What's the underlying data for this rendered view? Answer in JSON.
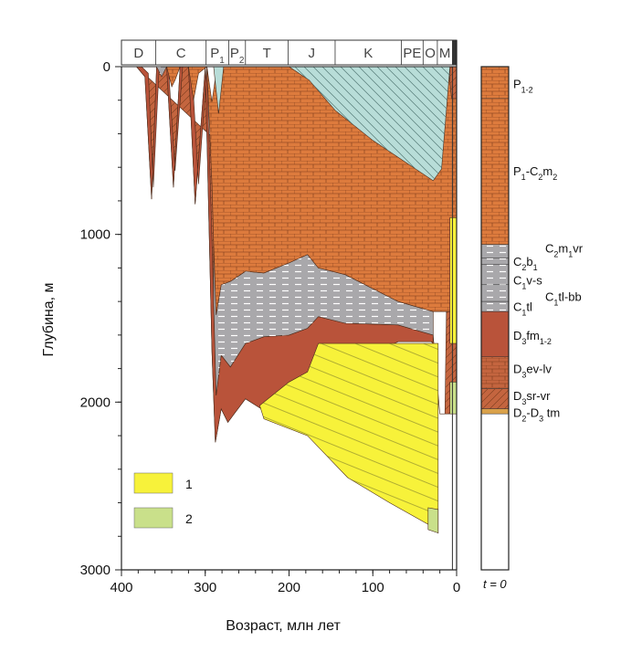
{
  "chart_data": {
    "type": "area",
    "xlabel": "Возраст, млн лет",
    "ylabel": "Глубина, м",
    "xlim": [
      400,
      0
    ],
    "ylim": [
      0,
      3000
    ],
    "x_ticks": [
      400,
      300,
      200,
      100,
      0
    ],
    "y_ticks": [
      0,
      1000,
      2000,
      3000
    ],
    "periods": [
      {
        "label": "D",
        "start": 400,
        "end": 359
      },
      {
        "label": "C",
        "start": 359,
        "end": 299
      },
      {
        "label": "P",
        "sub": "1",
        "start": 299,
        "end": 272
      },
      {
        "label": "P",
        "sub": "2",
        "start": 272,
        "end": 252
      },
      {
        "label": "T",
        "start": 252,
        "end": 201
      },
      {
        "label": "J",
        "start": 201,
        "end": 145
      },
      {
        "label": "K",
        "start": 145,
        "end": 66
      },
      {
        "label": "PE",
        "start": 66,
        "end": 40
      },
      {
        "label": "O",
        "start": 40,
        "end": 23
      },
      {
        "label": "M",
        "start": 23,
        "end": 5
      },
      {
        "label": "",
        "start": 5,
        "end": 0
      }
    ],
    "column_title": "t = 0",
    "column_units": [
      {
        "label": "P",
        "sub": "1-2",
        "top": 0,
        "bottom": 190,
        "fill": "#dd7b3d",
        "pattern": "brick",
        "tx": "P",
        "tsub": "1-2",
        "tail": ""
      },
      {
        "label": "P1-C2m2",
        "top": 190,
        "bottom": 1060,
        "fill": "#dd7b3d",
        "pattern": "brick",
        "tx": "P",
        "tsub": "1",
        "tail": "-C",
        "tsub2": "2",
        "tail2": "m",
        "tsub3": "2"
      },
      {
        "label": "C2m1vr",
        "top": 1060,
        "bottom": 1140,
        "fill": "#a9a8ab",
        "pattern": "dash"
      },
      {
        "label": "C2b1",
        "top": 1140,
        "bottom": 1180,
        "fill": "#a9a8ab",
        "pattern": "dash"
      },
      {
        "label": "C1v-s",
        "top": 1180,
        "bottom": 1300,
        "fill": "#a9a8ab",
        "pattern": "dash"
      },
      {
        "label": "C1tl-bb",
        "top": 1300,
        "bottom": 1400,
        "fill": "#a9a8ab",
        "pattern": "dash"
      },
      {
        "label": "C1tl",
        "top": 1400,
        "bottom": 1460,
        "fill": "#a9a8ab",
        "pattern": "dash"
      },
      {
        "label": "D3fm1-2",
        "top": 1460,
        "bottom": 1730,
        "fill": "#b9533a",
        "pattern": "none"
      },
      {
        "label": "D3ev-lv",
        "top": 1730,
        "bottom": 1920,
        "fill": "#c4653f",
        "pattern": "brick"
      },
      {
        "label": "D3sr-vr",
        "top": 1920,
        "bottom": 2040,
        "fill": "#c4653f",
        "pattern": "hatch"
      },
      {
        "label": "D2-D3 tm",
        "top": 2040,
        "bottom": 2070,
        "fill": "#d9a14a",
        "pattern": "none"
      },
      {
        "label": "",
        "top": 2070,
        "bottom": 3000,
        "fill": "#ffffff",
        "pattern": "none"
      }
    ],
    "column_labels": [
      {
        "base": "P",
        "parts": [
          [
            "sub",
            "1-2"
          ]
        ],
        "depth": 100,
        "col": 0
      },
      {
        "base": "P",
        "parts": [
          [
            "sub",
            "1"
          ],
          [
            "txt",
            "-C"
          ],
          [
            "sub",
            "2"
          ],
          [
            "txt",
            "m"
          ],
          [
            "sub",
            "2"
          ]
        ],
        "depth": 620,
        "col": 0
      },
      {
        "base": "C",
        "parts": [
          [
            "sub",
            "2"
          ],
          [
            "txt",
            "m"
          ],
          [
            "sub",
            "1"
          ],
          [
            "txt",
            "vr"
          ]
        ],
        "depth": 1080,
        "col": 1
      },
      {
        "base": "C",
        "parts": [
          [
            "sub",
            "2"
          ],
          [
            "txt",
            "b"
          ],
          [
            "sub",
            "1"
          ]
        ],
        "depth": 1160,
        "col": 0
      },
      {
        "base": "C",
        "parts": [
          [
            "sub",
            "1"
          ],
          [
            "txt",
            "v-s"
          ]
        ],
        "depth": 1270,
        "col": 0
      },
      {
        "base": "C",
        "parts": [
          [
            "sub",
            "1"
          ],
          [
            "txt",
            "tl-bb"
          ]
        ],
        "depth": 1370,
        "col": 1
      },
      {
        "base": "C",
        "parts": [
          [
            "sub",
            "1"
          ],
          [
            "txt",
            "tl"
          ]
        ],
        "depth": 1430,
        "col": 0
      },
      {
        "base": "D",
        "parts": [
          [
            "sub",
            "3"
          ],
          [
            "txt",
            "fm"
          ],
          [
            "sub",
            "1-2"
          ]
        ],
        "depth": 1600,
        "col": 0
      },
      {
        "base": "D",
        "parts": [
          [
            "sub",
            "3"
          ],
          [
            "txt",
            "ev-lv"
          ]
        ],
        "depth": 1800,
        "col": 0
      },
      {
        "base": "D",
        "parts": [
          [
            "sub",
            "3"
          ],
          [
            "txt",
            "sr-vr"
          ]
        ],
        "depth": 1960,
        "col": 0
      },
      {
        "base": "D",
        "parts": [
          [
            "sub",
            "2"
          ],
          [
            "txt",
            "-D"
          ],
          [
            "sub",
            "3"
          ],
          [
            "txt",
            " tm"
          ]
        ],
        "depth": 2060,
        "col": 0
      }
    ],
    "legend": [
      {
        "label": "1",
        "color": "#f7f23a"
      },
      {
        "label": "2",
        "color": "#c9e08a"
      }
    ],
    "series": [
      {
        "name": "",
        "fill": "#c4653f",
        "pattern": "hatch",
        "points": [
          [
            382,
            0
          ],
          [
            372,
            60
          ],
          [
            364,
            790
          ],
          [
            358,
            0
          ],
          [
            346,
            0
          ],
          [
            338,
            720
          ],
          [
            330,
            0
          ],
          [
            320,
            0
          ],
          [
            312,
            820
          ],
          [
            300,
            0
          ],
          [
            292,
            1700
          ],
          [
            288,
            2240
          ],
          [
            281,
            2040
          ],
          [
            273,
            2120
          ],
          [
            252,
            1980
          ],
          [
            230,
            2050
          ],
          [
            178,
            2050
          ],
          [
            165,
            1950
          ],
          [
            133,
            1790
          ],
          [
            110,
            1720
          ],
          [
            70,
            1640
          ],
          [
            28,
            1600
          ],
          [
            20,
            2070
          ],
          [
            14,
            2070
          ],
          [
            8,
            0
          ],
          [
            0,
            0
          ],
          [
            0,
            2070
          ],
          [
            14,
            2070
          ],
          [
            20,
            2070
          ],
          [
            20,
            2070
          ],
          [
            28,
            1650
          ]
        ]
      },
      {
        "name": "",
        "fill": "#b9533a",
        "pattern": "none",
        "points": [
          [
            376,
            0
          ],
          [
            368,
            40
          ],
          [
            362,
            720
          ],
          [
            355,
            0
          ],
          [
            344,
            0
          ],
          [
            336,
            620
          ],
          [
            327,
            0
          ],
          [
            316,
            0
          ],
          [
            308,
            700
          ],
          [
            298,
            0
          ],
          [
            290,
            1400
          ],
          [
            287,
            1960
          ],
          [
            281,
            1720
          ],
          [
            270,
            1790
          ],
          [
            252,
            1650
          ],
          [
            230,
            1610
          ],
          [
            200,
            1600
          ],
          [
            178,
            1560
          ],
          [
            165,
            1490
          ],
          [
            133,
            1530
          ],
          [
            70,
            1540
          ],
          [
            28,
            1600
          ],
          [
            28,
            1640
          ],
          [
            70,
            1640
          ],
          [
            133,
            1790
          ],
          [
            165,
            1950
          ],
          [
            178,
            2050
          ],
          [
            230,
            2050
          ],
          [
            252,
            1980
          ],
          [
            273,
            2120
          ],
          [
            281,
            2040
          ],
          [
            288,
            2240
          ],
          [
            292,
            1700
          ],
          [
            300,
            0
          ],
          [
            312,
            820
          ],
          [
            320,
            0
          ],
          [
            330,
            0
          ],
          [
            338,
            720
          ],
          [
            346,
            0
          ],
          [
            358,
            0
          ],
          [
            364,
            790
          ],
          [
            372,
            60
          ],
          [
            382,
            0
          ]
        ]
      },
      {
        "name": "",
        "fill": "#a9a8ab",
        "pattern": "dash",
        "points": [
          [
            290,
            1050
          ],
          [
            287,
            1480
          ],
          [
            281,
            1300
          ],
          [
            270,
            1280
          ],
          [
            252,
            1220
          ],
          [
            230,
            1230
          ],
          [
            200,
            1170
          ],
          [
            178,
            1120
          ],
          [
            165,
            1200
          ],
          [
            133,
            1240
          ],
          [
            70,
            1400
          ],
          [
            28,
            1460
          ],
          [
            28,
            1600
          ],
          [
            70,
            1540
          ],
          [
            133,
            1530
          ],
          [
            165,
            1490
          ],
          [
            178,
            1560
          ],
          [
            200,
            1600
          ],
          [
            230,
            1610
          ],
          [
            252,
            1650
          ],
          [
            270,
            1790
          ],
          [
            281,
            1720
          ],
          [
            287,
            1960
          ],
          [
            290,
            1400
          ]
        ]
      },
      {
        "name": "",
        "fill": "#dd7b3d",
        "pattern": "brick",
        "points": [
          [
            346,
            0
          ],
          [
            340,
            120
          ],
          [
            336,
            80
          ],
          [
            330,
            0
          ],
          [
            320,
            0
          ],
          [
            314,
            200
          ],
          [
            308,
            40
          ],
          [
            298,
            0
          ],
          [
            292,
            210
          ],
          [
            286,
            0
          ],
          [
            270,
            0
          ],
          [
            262,
            0
          ],
          [
            240,
            0
          ],
          [
            200,
            0
          ],
          [
            150,
            0
          ],
          [
            120,
            0
          ],
          [
            90,
            0
          ],
          [
            60,
            0
          ],
          [
            40,
            0
          ],
          [
            28,
            0
          ],
          [
            20,
            0
          ],
          [
            10,
            0
          ],
          [
            8,
            90
          ],
          [
            6,
            190
          ],
          [
            0,
            190
          ],
          [
            0,
            1460
          ],
          [
            28,
            1460
          ],
          [
            70,
            1400
          ],
          [
            133,
            1240
          ],
          [
            165,
            1200
          ],
          [
            178,
            1120
          ],
          [
            200,
            1170
          ],
          [
            230,
            1230
          ],
          [
            252,
            1220
          ],
          [
            270,
            1280
          ],
          [
            281,
            1300
          ],
          [
            287,
            1480
          ],
          [
            290,
            1050
          ],
          [
            292,
            700
          ],
          [
            298,
            0
          ]
        ]
      },
      {
        "name": "",
        "fill": "#b8ddd8",
        "pattern": "hatch2",
        "points": [
          [
            200,
            0
          ],
          [
            10,
            0
          ],
          [
            8,
            0
          ],
          [
            18,
            610
          ],
          [
            28,
            680
          ],
          [
            100,
            440
          ],
          [
            145,
            260
          ],
          [
            176,
            80
          ]
        ]
      },
      {
        "name": "",
        "fill": "#a9a8ab",
        "pattern": "dash",
        "points": [
          [
            358,
            0
          ],
          [
            352,
            60
          ],
          [
            346,
            0
          ]
        ]
      },
      {
        "name": "",
        "fill": "#b8ddd8",
        "pattern": "none",
        "points": [
          [
            290,
            0
          ],
          [
            284,
            280
          ],
          [
            278,
            0
          ]
        ]
      },
      {
        "name": "",
        "fill": "#f7f23a",
        "pattern": "lines",
        "points": [
          [
            235,
            2020
          ],
          [
            200,
            1880
          ],
          [
            178,
            1820
          ],
          [
            165,
            1650
          ],
          [
            133,
            1650
          ],
          [
            28,
            1650
          ],
          [
            22,
            1650
          ],
          [
            22,
            2780
          ],
          [
            30,
            2740
          ],
          [
            80,
            2600
          ],
          [
            130,
            2450
          ],
          [
            178,
            2200
          ],
          [
            230,
            2100
          ]
        ]
      },
      {
        "name": "",
        "fill": "#f7f23a",
        "pattern": "none",
        "points": [
          [
            8,
            900
          ],
          [
            0,
            900
          ],
          [
            0,
            1650
          ],
          [
            8,
            1650
          ]
        ]
      },
      {
        "name": "",
        "fill": "#c9e08a",
        "pattern": "none",
        "points": [
          [
            22,
            2640
          ],
          [
            22,
            2780
          ],
          [
            34,
            2760
          ],
          [
            34,
            2630
          ]
        ]
      },
      {
        "name": "",
        "fill": "#c9e08a",
        "pattern": "none",
        "points": [
          [
            8,
            1880
          ],
          [
            0,
            1880
          ],
          [
            0,
            2070
          ],
          [
            8,
            2070
          ]
        ]
      }
    ]
  }
}
